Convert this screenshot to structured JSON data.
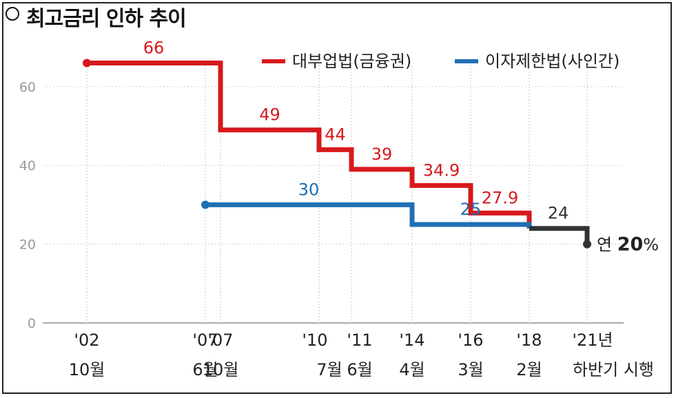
{
  "title": "최고금리 인하 추이",
  "colors": {
    "red": "#d7191c",
    "blue": "#1f6fb4",
    "dark": "#333333",
    "grid": "#9a9a9a"
  },
  "chart_data": {
    "type": "line",
    "title": "최고금리 인하 추이",
    "ylim": [
      0,
      70
    ],
    "yticks": [
      0,
      20,
      40,
      60
    ],
    "step": true,
    "x_labels": [
      {
        "year": "'02",
        "month": "10월"
      },
      {
        "year": "'07",
        "month": "6월"
      },
      {
        "year": "'07",
        "month": "10월"
      },
      {
        "year": "'10",
        "month": "7월"
      },
      {
        "year": "'11",
        "month": "6월"
      },
      {
        "year": "'14",
        "month": "4월"
      },
      {
        "year": "'16",
        "month": "3월"
      },
      {
        "year": "'18",
        "month": "2월"
      },
      {
        "year": "'21년",
        "month": "하반기 시행"
      }
    ],
    "series": [
      {
        "name": "대부업법(금융권)",
        "color": "#d7191c",
        "x": [
          0,
          2,
          3,
          4,
          5,
          6,
          7
        ],
        "values": [
          66,
          49,
          44,
          39,
          34.9,
          27.9,
          24
        ],
        "labels": [
          "66",
          "49",
          "44",
          "39",
          "34.9",
          "27.9",
          ""
        ]
      },
      {
        "name": "이자제한법(사인간)",
        "color": "#1f6fb4",
        "x": [
          1,
          5,
          7
        ],
        "values": [
          30,
          25,
          24
        ],
        "labels": [
          "30",
          "25",
          ""
        ]
      },
      {
        "name": "",
        "color": "#333333",
        "x": [
          7,
          8
        ],
        "values": [
          24,
          20
        ],
        "labels": [
          "24",
          ""
        ]
      }
    ],
    "end_annotation": {
      "prefix": "연 ",
      "value": "20",
      "suffix": "%"
    }
  }
}
